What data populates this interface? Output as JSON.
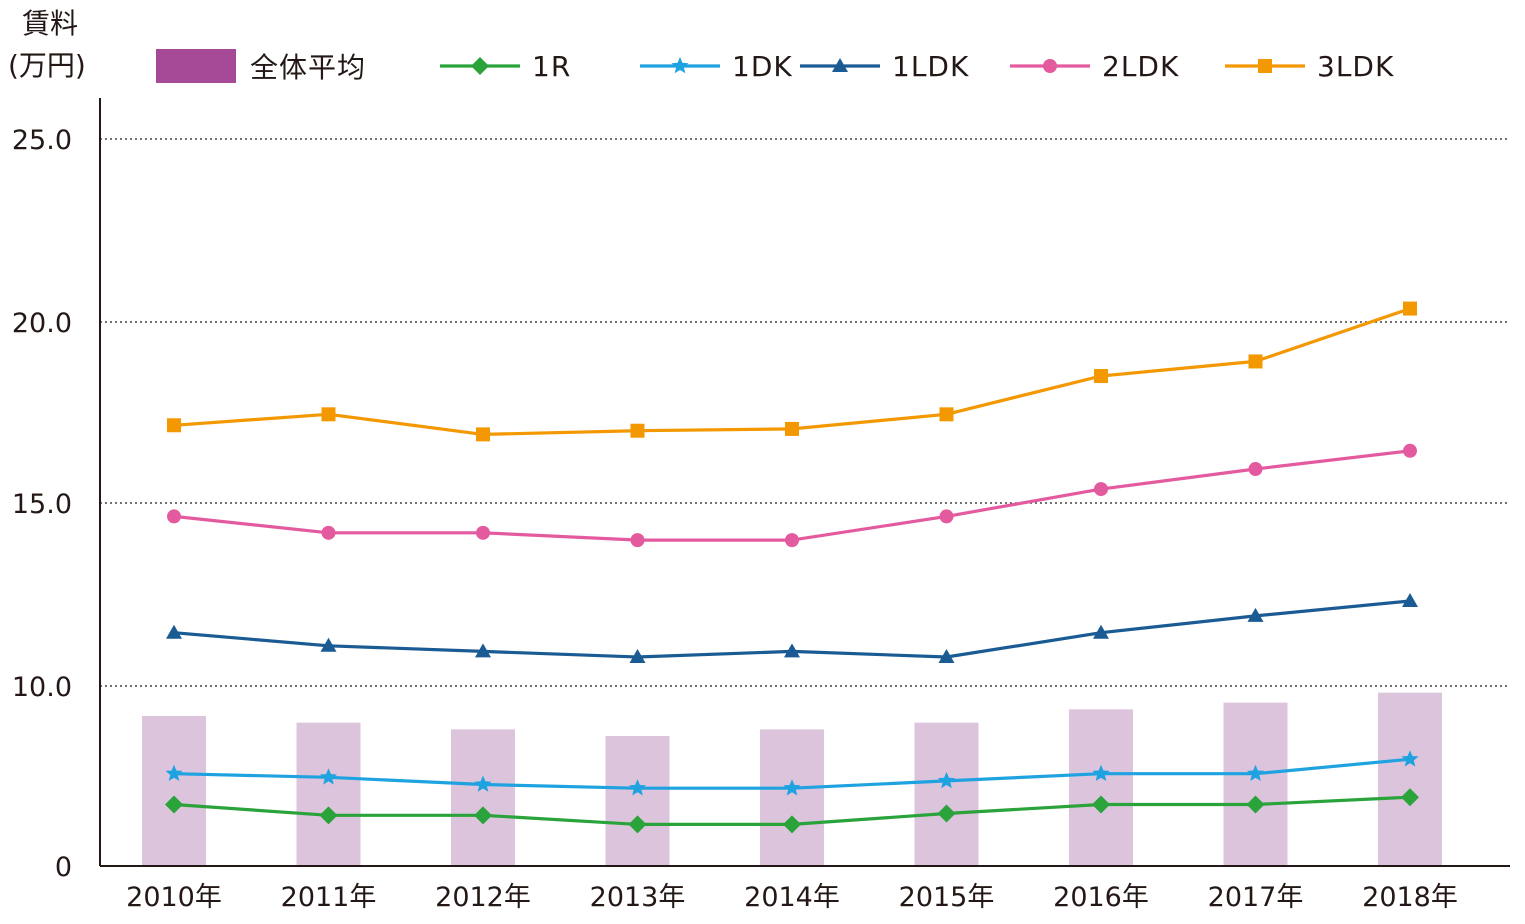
{
  "chart_data": {
    "type": "bar",
    "ylabel_line1": "賃料",
    "ylabel_line2": "(万円)",
    "categories": [
      "2010年",
      "2011年",
      "2012年",
      "2013年",
      "2014年",
      "2015年",
      "2016年",
      "2017年",
      "2018年"
    ],
    "yticks": [
      "0",
      "10.0",
      "15.0",
      "20.0",
      "25.0"
    ],
    "ylim": [
      0,
      25
    ],
    "grid": "dotted horizontal",
    "legend_placement": "top",
    "bar_series": {
      "name": "全体平均",
      "values": [
        4.5,
        4.3,
        4.1,
        3.9,
        4.1,
        4.3,
        4.7,
        4.9,
        5.2
      ],
      "color": "#a64a97",
      "fill_color": "#dcc4dc"
    },
    "series": [
      {
        "name": "1R",
        "marker": "diamond",
        "color": "#2aa33b",
        "values": [
          1.7,
          1.4,
          1.4,
          1.15,
          1.15,
          1.45,
          1.7,
          1.7,
          1.9
        ]
      },
      {
        "name": "1DK",
        "marker": "star",
        "color": "#1fa3e0",
        "values": [
          2.55,
          2.45,
          2.25,
          2.15,
          2.15,
          2.35,
          2.55,
          2.55,
          2.95
        ]
      },
      {
        "name": "1LDK",
        "marker": "triangle",
        "color": "#1b5b94",
        "values": [
          6.35,
          6.0,
          5.85,
          5.7,
          5.85,
          5.7,
          6.35,
          6.8,
          7.2
        ]
      },
      {
        "name": "2LDK",
        "marker": "circle",
        "color": "#e45a9f",
        "values": [
          14.65,
          14.2,
          14.2,
          14.0,
          14.0,
          14.65,
          15.4,
          15.95,
          16.45
        ]
      },
      {
        "name": "3LDK",
        "marker": "square",
        "color": "#f39800",
        "values": [
          17.15,
          17.45,
          16.9,
          17.0,
          17.05,
          17.45,
          18.5,
          18.9,
          20.35
        ]
      }
    ]
  }
}
